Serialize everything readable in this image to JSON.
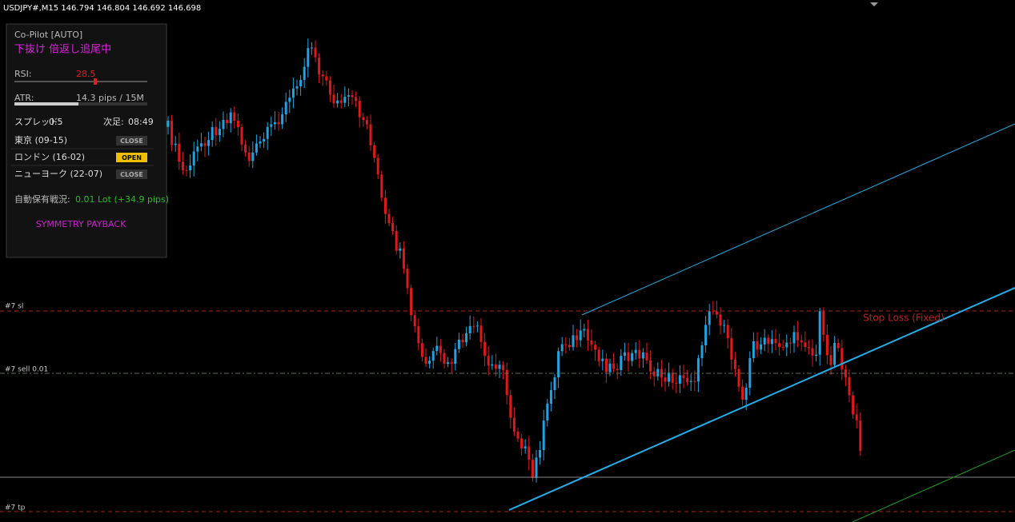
{
  "header": {
    "symbol": "USDJPY#,M15  146.794 146.804 146.692 146.698"
  },
  "panel": {
    "title": "Co-Pilot [AUTO]",
    "status": "下抜け 倍返し追尾中",
    "rsi_label": "RSI:",
    "rsi_value": "28.5",
    "atr_label": "ATR:",
    "atr_value": "14.3 pips / 15M",
    "spread_label": "スプレッド:",
    "spread_value": "0.5",
    "next_label": "次足:",
    "next_value": "08:49",
    "sessions": [
      {
        "name": "東京 (09-15)",
        "status": "CLOSE"
      },
      {
        "name": "ロンドン (16-02)",
        "status": "OPEN"
      },
      {
        "name": "ニューヨーク (22-07)",
        "status": "CLOSE"
      }
    ],
    "position_label": "自動保有戦況:",
    "position_value": "0.01 Lot (+34.9 pips)",
    "mode": "SYMMETRY PAYBACK"
  },
  "levels": {
    "sl": "#7 sl",
    "sell": "#7 sell 0.01",
    "tp": "#7 tp",
    "stop_loss": "Stop Loss (Fixed)"
  }
}
